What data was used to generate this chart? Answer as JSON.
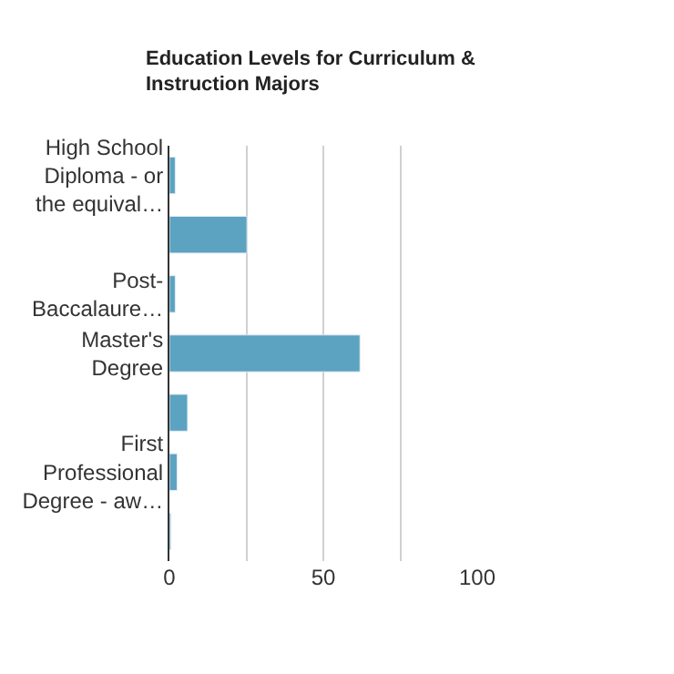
{
  "chart_data": {
    "type": "bar",
    "orientation": "horizontal",
    "title": "Education Levels for Curriculum &\nInstruction Majors",
    "categories": [
      "High School\nDiploma - or\nthe equival…",
      null,
      "Post-\nBaccalaure…",
      "Master's\nDegree",
      null,
      "First\nProfessional\nDegree - aw…",
      null
    ],
    "values": [
      1.9,
      25.2,
      1.9,
      61.9,
      5.9,
      2.5,
      0.5
    ],
    "color": "#5ba3c0",
    "xlim": [
      0,
      100
    ],
    "xticks": [
      0,
      {
        "value": 25,
        "label": null
      },
      50,
      {
        "value": 75,
        "label": null
      },
      100
    ],
    "grid": "x"
  }
}
